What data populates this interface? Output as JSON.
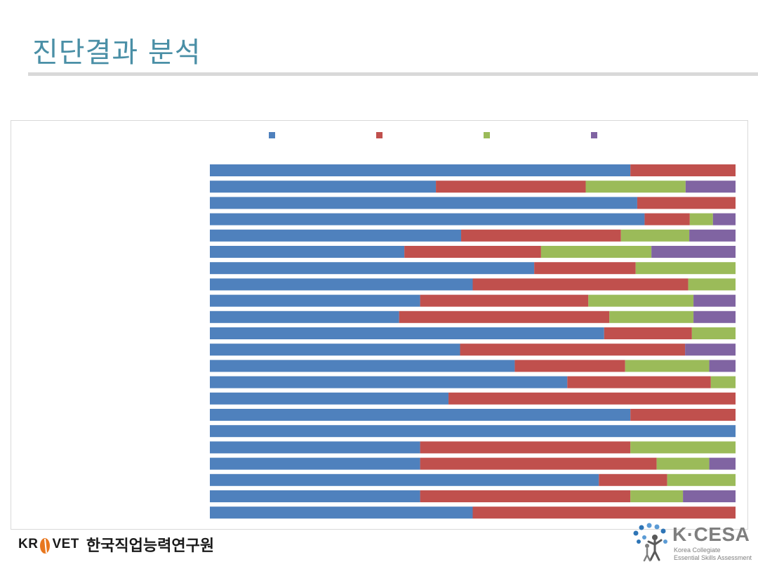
{
  "page": {
    "title": "진단결과 분석"
  },
  "colors": {
    "title": "#4a8fa6",
    "series": [
      "#4f81bd",
      "#c0504d",
      "#9bbb59",
      "#8064a2"
    ],
    "frame": "#d9d9d9"
  },
  "chart_data": {
    "type": "bar",
    "orientation": "horizontal",
    "stacked": "percent",
    "title": "",
    "xlabel": "",
    "ylabel": "",
    "xlim": [
      0,
      100
    ],
    "grid": false,
    "legend": "top",
    "series": [
      {
        "values": [
          80,
          43,
          81.3,
          82.7,
          47.8,
          37,
          61.7,
          50,
          40,
          36,
          75,
          47.6,
          58,
          68,
          45.4,
          80,
          100,
          40,
          40,
          74,
          40,
          50
        ]
      },
      {
        "values": [
          20,
          28.5,
          18.7,
          8.6,
          30.4,
          26,
          19.3,
          41,
          32,
          40,
          16.7,
          42.8,
          21,
          27.3,
          54.6,
          20,
          0,
          40,
          45,
          13,
          40,
          50
        ]
      },
      {
        "values": [
          0,
          19,
          0,
          4.4,
          13,
          21,
          19,
          9,
          20,
          16,
          8.3,
          0,
          16,
          4.7,
          0,
          0,
          0,
          20,
          10,
          13,
          10,
          0
        ]
      },
      {
        "values": [
          0,
          9.5,
          0,
          4.3,
          8.8,
          16,
          0,
          0,
          8,
          8,
          0,
          9.6,
          5,
          0,
          0,
          0,
          0,
          0,
          5,
          0,
          10,
          0
        ]
      }
    ]
  },
  "footer": {
    "krivet_left": "KR",
    "krivet_right": "VET",
    "krivet_korean": "한국직업능력연구원",
    "kcesa_name": "K·CESA",
    "kcesa_line1": "Korea Collegiate",
    "kcesa_line2": "Essential Skills Assessment"
  }
}
